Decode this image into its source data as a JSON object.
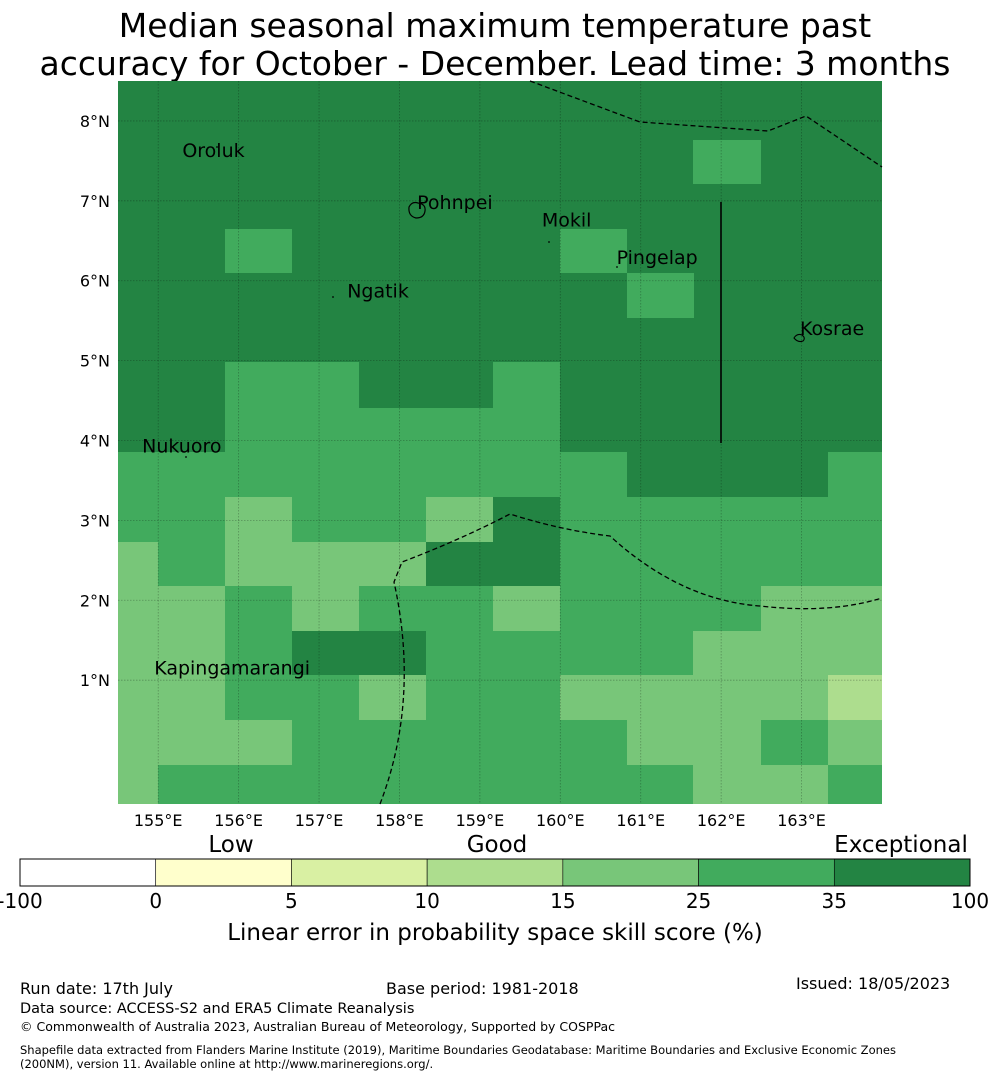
{
  "title": {
    "line1": "Median seasonal maximum temperature past",
    "line2": "accuracy for October - December. Lead time: 3 months"
  },
  "map": {
    "lon_range": [
      154.5,
      164.0
    ],
    "lat_range": [
      -0.55,
      8.5
    ],
    "x_ticks": [
      "155°E",
      "156°E",
      "157°E",
      "158°E",
      "159°E",
      "160°E",
      "161°E",
      "162°E",
      "163°E"
    ],
    "y_ticks": [
      "8°N",
      "7°N",
      "6°N",
      "5°N",
      "4°N",
      "3°N",
      "2°N",
      "1°N"
    ],
    "places": [
      {
        "name": "Oroluk",
        "lon": 155.3,
        "lat": 7.55
      },
      {
        "name": "Pohnpei",
        "lon": 158.22,
        "lat": 6.9
      },
      {
        "name": "Mokil",
        "lon": 159.77,
        "lat": 6.68
      },
      {
        "name": "Pingelap",
        "lon": 160.7,
        "lat": 6.21
      },
      {
        "name": "Ngatik",
        "lon": 157.35,
        "lat": 5.79
      },
      {
        "name": "Kosrae",
        "lon": 162.98,
        "lat": 5.32
      },
      {
        "name": "Nukuoro",
        "lon": 154.8,
        "lat": 3.85
      },
      {
        "name": "Kapingamarangi",
        "lon": 154.95,
        "lat": 1.07
      }
    ],
    "skill_colors": {
      "c35_100": "#238443",
      "c25_35": "#41ab5d",
      "c15_25": "#78c679",
      "c10_15": "#addd8e",
      "c5_10": "#d9f0a3",
      "c0_5": "#ffffcc",
      "cneg": "#ffffff"
    }
  },
  "colorbar": {
    "ticks": [
      "-100",
      "0",
      "5",
      "10",
      "15",
      "25",
      "35",
      "100"
    ],
    "colors": [
      "#ffffff",
      "#ffffcc",
      "#d9f0a3",
      "#addd8e",
      "#78c679",
      "#41ab5d",
      "#238443"
    ],
    "categories": [
      "Low",
      "Good",
      "Exceptional"
    ],
    "label": "Linear error in probability space skill score (%)"
  },
  "footer": {
    "run_date": "Run date: 17th July",
    "base_period": "Base period: 1981-2018",
    "issued": "Issued: 18/05/2023",
    "data_source": "Data source: ACCESS-S2 and ERA5 Climate Reanalysis",
    "copyright": "© Commonwealth of Australia 2023, Australian Bureau of Meteorology, Supported by COSPPac",
    "shapefile_1": "Shapefile data extracted from Flanders Marine Institute (2019), Maritime Boundaries Geodatabase: Maritime Boundaries and Exclusive Economic Zones",
    "shapefile_2": "(200NM), version 11. Available online at http://www.marineregions.org/."
  }
}
